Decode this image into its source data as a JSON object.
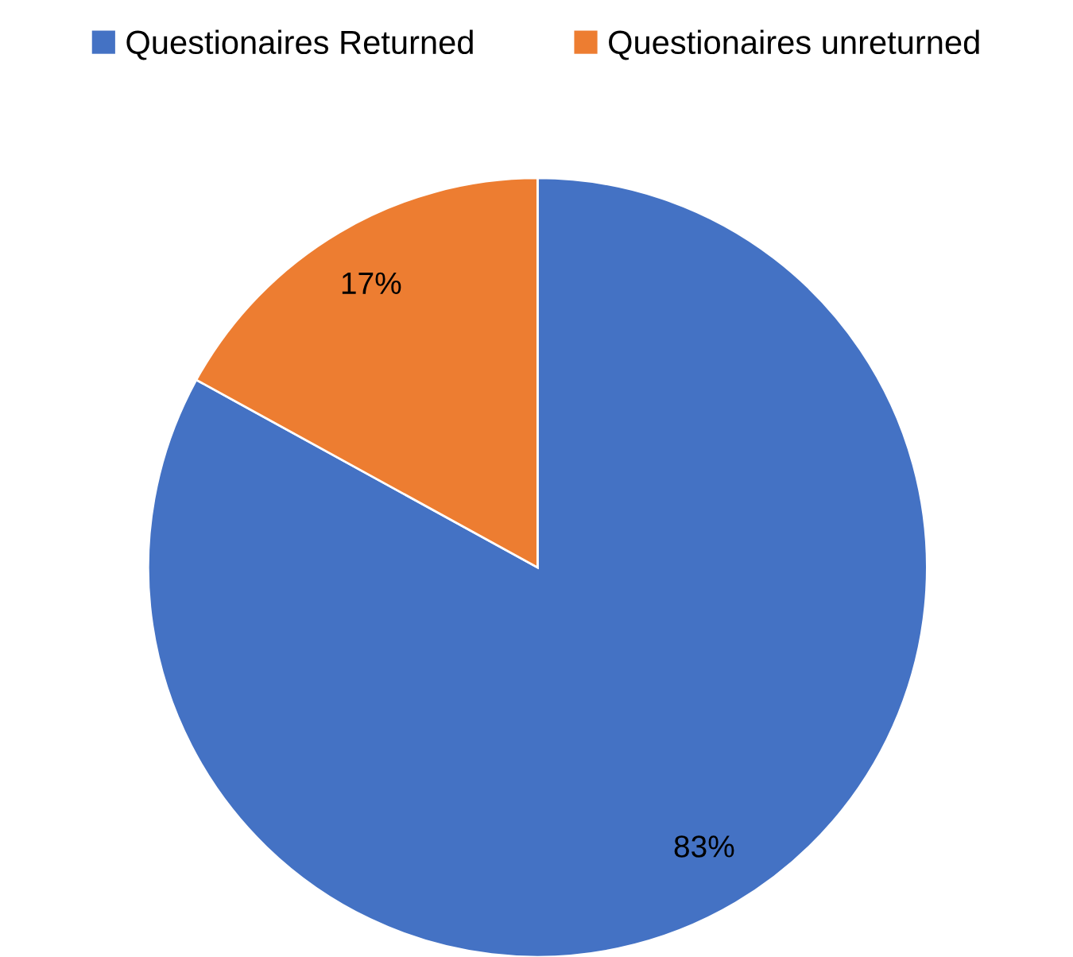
{
  "chart_data": {
    "type": "pie",
    "categories": [
      "Questionaires Returned",
      "Questionaires unreturned"
    ],
    "values": [
      83,
      17
    ],
    "colors": [
      "#4472c4",
      "#ed7d31"
    ],
    "value_labels": [
      "83%",
      "17%"
    ],
    "legend": "top"
  }
}
